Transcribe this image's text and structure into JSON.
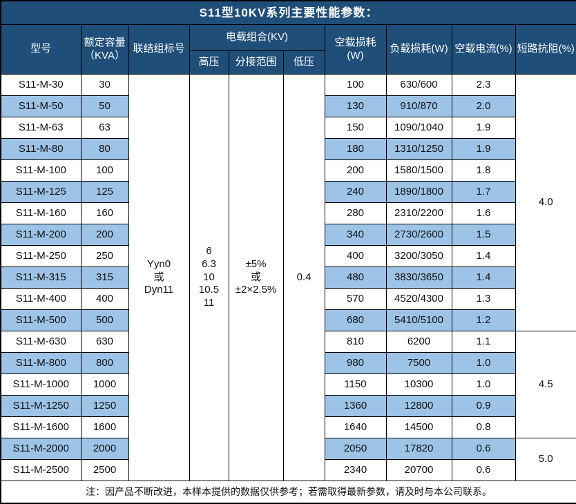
{
  "title": "S11型10KV系列主要性能参数：",
  "colors": {
    "header_bg": "#1F4E79",
    "stripe_bg": "#9DC3E6",
    "border": "#000000"
  },
  "table": {
    "headers": {
      "model": "型号",
      "capacity": "额定容量\n（KVA）",
      "connection": "联结组标号",
      "voltage_combo": "电载组合(KV)",
      "high_voltage": "高压",
      "tap_range": "分接范围",
      "low_voltage": "低压",
      "no_load_loss": "空载损耗(W)",
      "load_loss": "负载损耗(W)",
      "no_load_current": "空载电流(%)",
      "impedance": "短路抗阻(%)"
    },
    "merged": {
      "connection": "Yyn0\n或\nDyn11",
      "high_voltage": "6\n6.3\n10\n10.5\n11",
      "tap_range": "±5%\n或\n±2×2.5%",
      "low_voltage": "0.4"
    },
    "rows": [
      {
        "model": "S11-M-30",
        "capacity": "30",
        "no_load_loss": "100",
        "load_loss": "630/600",
        "no_load_current": "2.3"
      },
      {
        "model": "S11-M-50",
        "capacity": "50",
        "no_load_loss": "130",
        "load_loss": "910/870",
        "no_load_current": "2.0"
      },
      {
        "model": "S11-M-63",
        "capacity": "63",
        "no_load_loss": "150",
        "load_loss": "1090/1040",
        "no_load_current": "1.9"
      },
      {
        "model": "S11-M-80",
        "capacity": "80",
        "no_load_loss": "180",
        "load_loss": "1310/1250",
        "no_load_current": "1.9"
      },
      {
        "model": "S11-M-100",
        "capacity": "100",
        "no_load_loss": "200",
        "load_loss": "1580/1500",
        "no_load_current": "1.8"
      },
      {
        "model": "S11-M-125",
        "capacity": "125",
        "no_load_loss": "240",
        "load_loss": "1890/1800",
        "no_load_current": "1.7"
      },
      {
        "model": "S11-M-160",
        "capacity": "160",
        "no_load_loss": "280",
        "load_loss": "2310/2200",
        "no_load_current": "1.6"
      },
      {
        "model": "S11-M-200",
        "capacity": "200",
        "no_load_loss": "340",
        "load_loss": "2730/2600",
        "no_load_current": "1.5"
      },
      {
        "model": "S11-M-250",
        "capacity": "250",
        "no_load_loss": "400",
        "load_loss": "3200/3050",
        "no_load_current": "1.4"
      },
      {
        "model": "S11-M-315",
        "capacity": "315",
        "no_load_loss": "480",
        "load_loss": "3830/3650",
        "no_load_current": "1.4"
      },
      {
        "model": "S11-M-400",
        "capacity": "400",
        "no_load_loss": "570",
        "load_loss": "4520/4300",
        "no_load_current": "1.3"
      },
      {
        "model": "S11-M-500",
        "capacity": "500",
        "no_load_loss": "680",
        "load_loss": "5410/5100",
        "no_load_current": "1.2"
      },
      {
        "model": "S11-M-630",
        "capacity": "630",
        "no_load_loss": "810",
        "load_loss": "6200",
        "no_load_current": "1.1"
      },
      {
        "model": "S11-M-800",
        "capacity": "800",
        "no_load_loss": "980",
        "load_loss": "7500",
        "no_load_current": "1.0"
      },
      {
        "model": "S11-M-1000",
        "capacity": "1000",
        "no_load_loss": "1150",
        "load_loss": "10300",
        "no_load_current": "1.0"
      },
      {
        "model": "S11-M-1250",
        "capacity": "1250",
        "no_load_loss": "1360",
        "load_loss": "12800",
        "no_load_current": "0.9"
      },
      {
        "model": "S11-M-1600",
        "capacity": "1600",
        "no_load_loss": "1640",
        "load_loss": "14500",
        "no_load_current": "0.8"
      },
      {
        "model": "S11-M-2000",
        "capacity": "2000",
        "no_load_loss": "2050",
        "load_loss": "17820",
        "no_load_current": "0.6"
      },
      {
        "model": "S11-M-2500",
        "capacity": "2500",
        "no_load_loss": "2340",
        "load_loss": "20700",
        "no_load_current": "0.6"
      }
    ],
    "impedance_groups": [
      {
        "value": "4.0",
        "row_span": 12
      },
      {
        "value": "4.5",
        "row_span": 5
      },
      {
        "value": "5.0",
        "row_span": 2
      }
    ]
  },
  "footer_note": "注：因产品不断改进，本样本提供的数据仅供参考；若需取得最新参数，请及时与本公司联系。"
}
